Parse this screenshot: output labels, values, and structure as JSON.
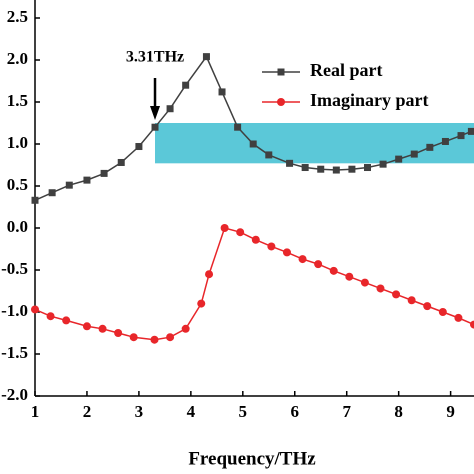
{
  "chart_data": {
    "type": "line",
    "xlabel": "Frequency/THz",
    "annotation": "3.31THz",
    "annotation_x": 3.31,
    "band": {
      "x": [
        3.31,
        9.45
      ],
      "y": [
        0.77,
        1.25
      ],
      "color": "#5bc8d8"
    },
    "xlim": [
      1,
      9.45
    ],
    "ylim": [
      -2.0,
      2.5
    ],
    "xticks": [
      1,
      2,
      3,
      4,
      5,
      6,
      7,
      8,
      9
    ],
    "yticks": [
      {
        "value": 2.5,
        "label": "2.5"
      },
      {
        "value": 2,
        "label": "2.0"
      },
      {
        "value": 1.5,
        "label": "1.5"
      },
      {
        "value": 1,
        "label": "1.0"
      },
      {
        "value": 0.5,
        "label": "0.5"
      },
      {
        "value": 0,
        "label": "0.0"
      },
      {
        "value": -0.5,
        "label": "-0.5"
      },
      {
        "value": -1,
        "label": "-1.0"
      },
      {
        "value": -1.5,
        "label": "-1.5"
      },
      {
        "value": -2,
        "label": "-2.0"
      }
    ],
    "legend": "top-right",
    "series": [
      {
        "name": "Real part",
        "color": "#404040",
        "marker": "square",
        "x": [
          1,
          1.33,
          1.66,
          2,
          2.33,
          2.66,
          3,
          3.31,
          3.6,
          3.9,
          4.3,
          4.6,
          4.9,
          5.2,
          5.5,
          5.9,
          6.2,
          6.5,
          6.8,
          7.1,
          7.4,
          7.7,
          8.0,
          8.3,
          8.6,
          8.9,
          9.2,
          9.4
        ],
        "values": [
          0.33,
          0.42,
          0.51,
          0.57,
          0.65,
          0.78,
          0.97,
          1.2,
          1.42,
          1.7,
          2.04,
          1.62,
          1.2,
          1.0,
          0.87,
          0.77,
          0.72,
          0.7,
          0.69,
          0.7,
          0.72,
          0.76,
          0.82,
          0.88,
          0.96,
          1.03,
          1.1,
          1.15
        ]
      },
      {
        "name": "Imaginary part",
        "color": "#e8262a",
        "marker": "circle",
        "x": [
          1,
          1.3,
          1.6,
          2,
          2.3,
          2.6,
          2.9,
          3.3,
          3.6,
          3.9,
          4.2,
          4.35,
          4.65,
          4.95,
          5.25,
          5.55,
          5.85,
          6.15,
          6.45,
          6.75,
          7.05,
          7.35,
          7.65,
          7.95,
          8.25,
          8.55,
          8.85,
          9.15,
          9.45
        ],
        "values": [
          -0.97,
          -1.05,
          -1.1,
          -1.17,
          -1.2,
          -1.25,
          -1.3,
          -1.33,
          -1.3,
          -1.2,
          -0.9,
          -0.55,
          0.0,
          -0.05,
          -0.14,
          -0.22,
          -0.29,
          -0.37,
          -0.43,
          -0.51,
          -0.58,
          -0.65,
          -0.72,
          -0.79,
          -0.86,
          -0.93,
          -1.0,
          -1.07,
          -1.15
        ]
      }
    ]
  }
}
